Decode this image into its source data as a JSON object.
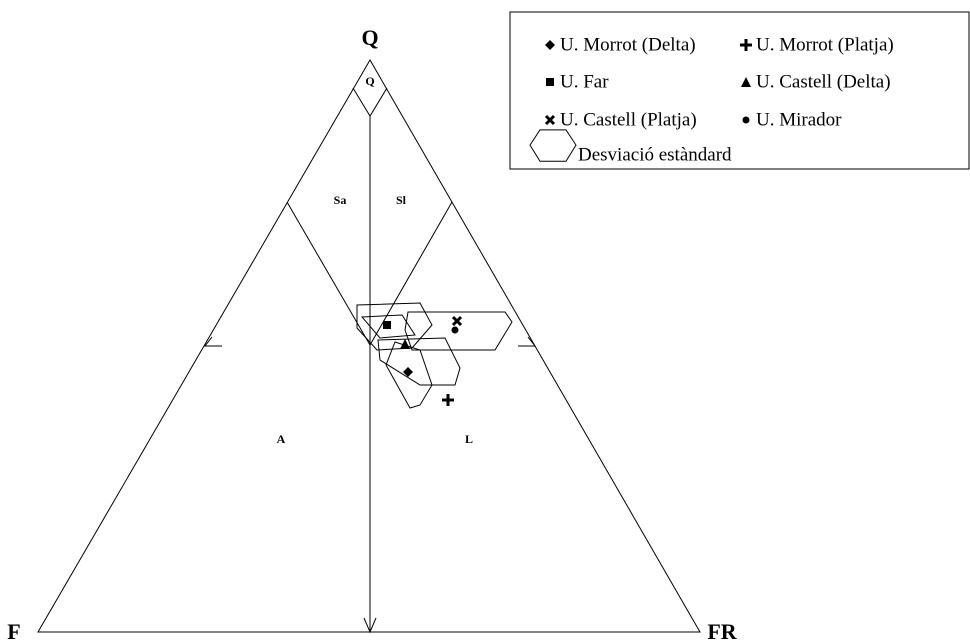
{
  "vertices": {
    "top": "Q",
    "left": "F",
    "right": "FR"
  },
  "fields": [
    "Q",
    "Sa",
    "Sl",
    "A",
    "L"
  ],
  "legend": [
    "U. Morrot (Delta)",
    "U. Morrot (Platja)",
    "U. Far",
    "U. Castell (Delta)",
    "U. Castell (Platja)",
    "U. Mirador",
    "Desviació estàndard"
  ]
}
